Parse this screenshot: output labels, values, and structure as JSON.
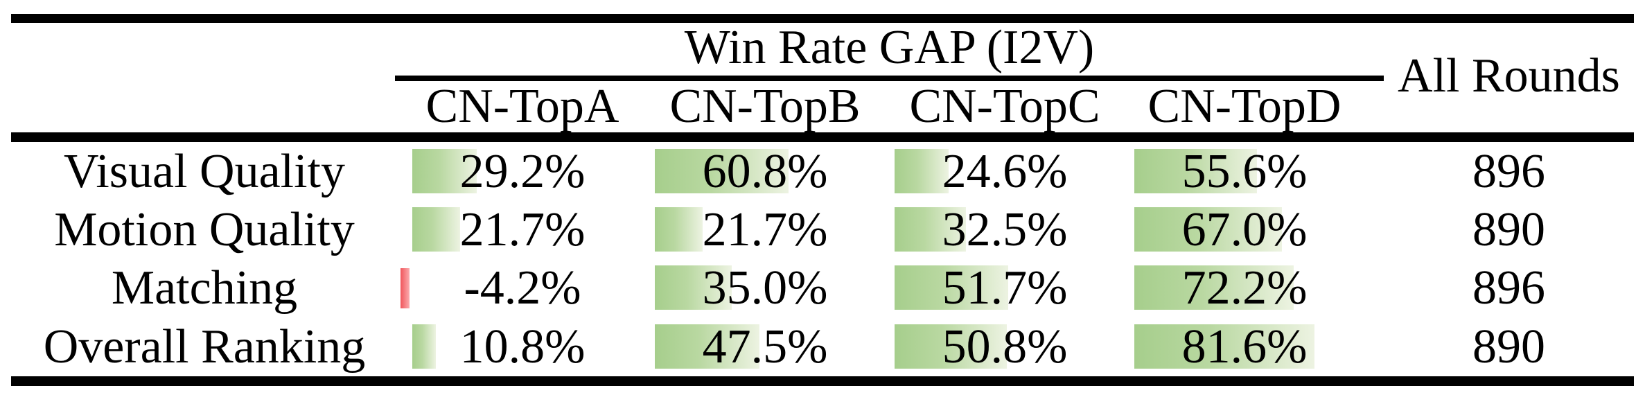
{
  "table": {
    "title": "Win Rate GAP (I2V)",
    "all_rounds_header": "All Rounds",
    "columns": [
      "CN-TopA",
      "CN-TopB",
      "CN-TopC",
      "CN-TopD"
    ],
    "rows": [
      {
        "label": "Visual Quality",
        "cells": [
          {
            "text": "29.2%",
            "value": 29.2
          },
          {
            "text": "60.8%",
            "value": 60.8
          },
          {
            "text": "24.6%",
            "value": 24.6
          },
          {
            "text": "55.6%",
            "value": 55.6
          }
        ],
        "rounds": "896"
      },
      {
        "label": "Motion Quality",
        "cells": [
          {
            "text": "21.7%",
            "value": 21.7
          },
          {
            "text": "21.7%",
            "value": 21.7
          },
          {
            "text": "32.5%",
            "value": 32.5
          },
          {
            "text": "67.0%",
            "value": 67.0
          }
        ],
        "rounds": "890"
      },
      {
        "label": "Matching",
        "cells": [
          {
            "text": "-4.2%",
            "value": -4.2
          },
          {
            "text": "35.0%",
            "value": 35.0
          },
          {
            "text": "51.7%",
            "value": 51.7
          },
          {
            "text": "72.2%",
            "value": 72.2
          }
        ],
        "rounds": "896"
      },
      {
        "label": "Overall Ranking",
        "cells": [
          {
            "text": "10.8%",
            "value": 10.8
          },
          {
            "text": "47.5%",
            "value": 47.5
          },
          {
            "text": "50.8%",
            "value": 50.8
          },
          {
            "text": "81.6%",
            "value": 81.6
          }
        ],
        "rounds": "890"
      }
    ]
  },
  "colors": {
    "bar_positive_start": "#a6ce8c",
    "bar_positive_end": "#edf3e2",
    "bar_negative_start": "#f1565c",
    "bar_negative_end": "#fbabad",
    "rule": "#000000"
  },
  "chart_data": {
    "type": "table",
    "title": "Win Rate GAP (I2V)",
    "columns": [
      "CN-TopA",
      "CN-TopB",
      "CN-TopC",
      "CN-TopD",
      "All Rounds"
    ],
    "row_labels": [
      "Visual Quality",
      "Motion Quality",
      "Matching",
      "Overall Ranking"
    ],
    "values_percent": [
      [
        29.2,
        60.8,
        24.6,
        55.6
      ],
      [
        21.7,
        21.7,
        32.5,
        67.0
      ],
      [
        -4.2,
        35.0,
        51.7,
        72.2
      ],
      [
        10.8,
        47.5,
        50.8,
        81.6
      ]
    ],
    "all_rounds": [
      896,
      890,
      896,
      890
    ],
    "bar_scale": "bar width proportional to percent, 100% = full cell width, positive green gradient, negative red"
  }
}
